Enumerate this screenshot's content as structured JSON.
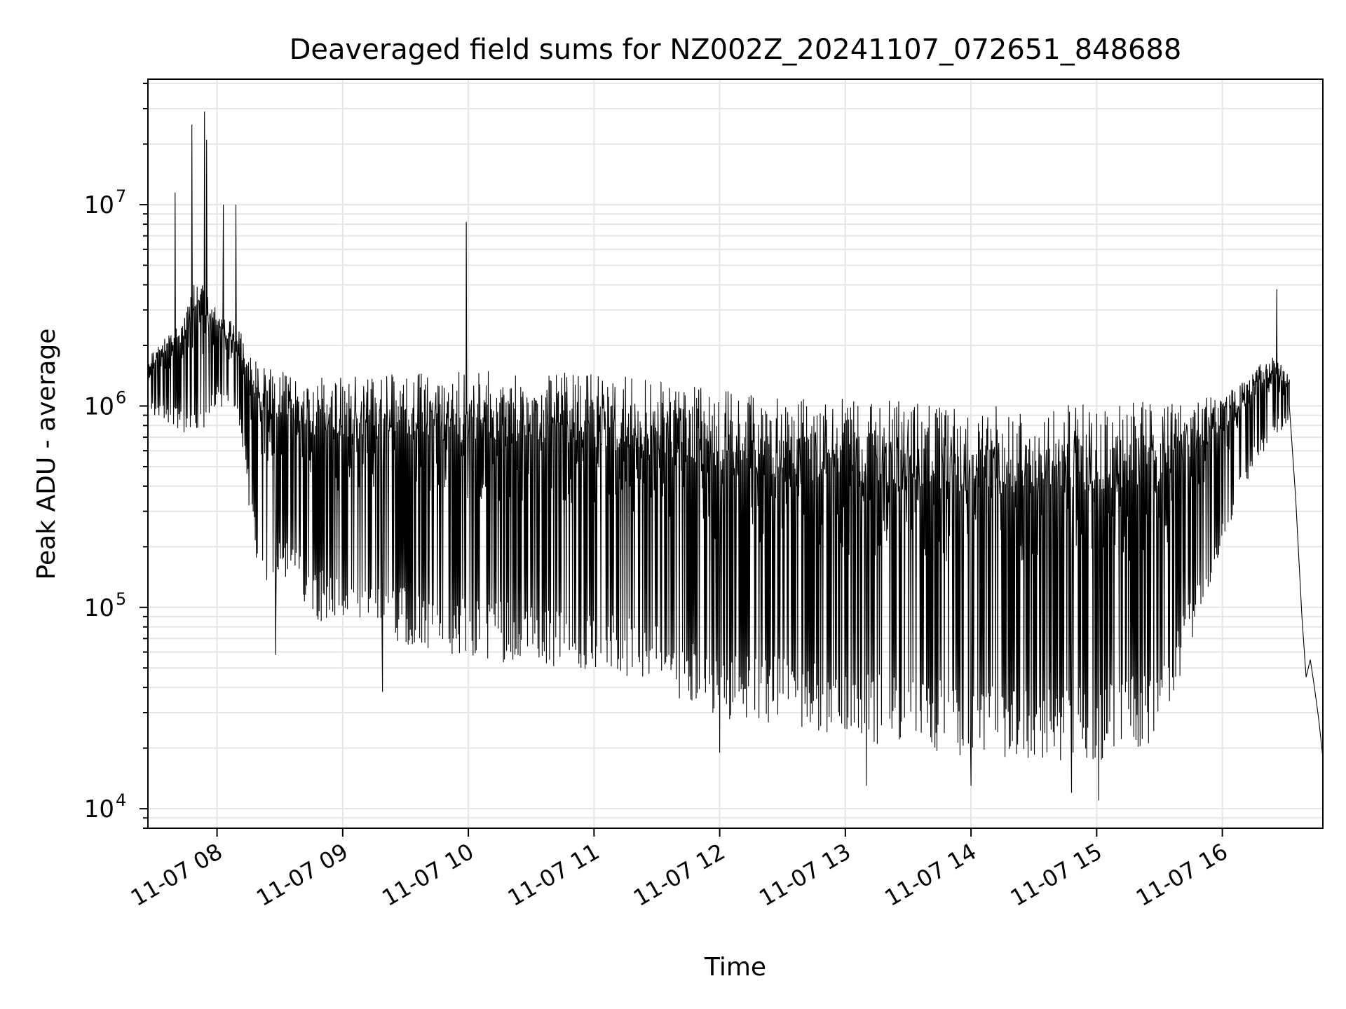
{
  "chart_data": {
    "type": "line",
    "title": "Deaveraged field sums for NZ002Z_20241107_072651_848688",
    "xlabel": "Time",
    "ylabel": "Peak ADU - average",
    "yscale": "log",
    "ylim": [
      8000,
      42000000
    ],
    "xlim": [
      "2024-11-07T07:27",
      "2024-11-07T16:48"
    ],
    "grid": true,
    "legend": "none",
    "x_ticks": [
      {
        "t": "2024-11-07T08:00",
        "label": "11-07 08"
      },
      {
        "t": "2024-11-07T09:00",
        "label": "11-07 09"
      },
      {
        "t": "2024-11-07T10:00",
        "label": "11-07 10"
      },
      {
        "t": "2024-11-07T11:00",
        "label": "11-07 11"
      },
      {
        "t": "2024-11-07T12:00",
        "label": "11-07 12"
      },
      {
        "t": "2024-11-07T13:00",
        "label": "11-07 13"
      },
      {
        "t": "2024-11-07T14:00",
        "label": "11-07 14"
      },
      {
        "t": "2024-11-07T15:00",
        "label": "11-07 15"
      },
      {
        "t": "2024-11-07T16:00",
        "label": "11-07 16"
      }
    ],
    "y_ticks": [
      {
        "value": 10000,
        "base": "10",
        "exp": "4"
      },
      {
        "value": 100000,
        "base": "10",
        "exp": "5"
      },
      {
        "value": 1000000,
        "base": "10",
        "exp": "6"
      },
      {
        "value": 10000000,
        "base": "10",
        "exp": "7"
      }
    ],
    "series": [
      {
        "color": "#000000",
        "envelope": [
          {
            "t": "2024-11-07T07:27",
            "high": 1800000,
            "low": 900000
          },
          {
            "t": "2024-11-07T07:40",
            "high": 2500000,
            "low": 800000
          },
          {
            "t": "2024-11-07T07:50",
            "high": 4500000,
            "low": 600000
          },
          {
            "t": "2024-11-07T08:00",
            "high": 3000000,
            "low": 1000000
          },
          {
            "t": "2024-11-07T08:10",
            "high": 2500000,
            "low": 900000
          },
          {
            "t": "2024-11-07T08:20",
            "high": 1600000,
            "low": 120000
          },
          {
            "t": "2024-11-07T08:30",
            "high": 1500000,
            "low": 150000
          },
          {
            "t": "2024-11-07T08:45",
            "high": 1400000,
            "low": 90000
          },
          {
            "t": "2024-11-07T09:00",
            "high": 1400000,
            "low": 75000
          },
          {
            "t": "2024-11-07T09:30",
            "high": 1450000,
            "low": 65000
          },
          {
            "t": "2024-11-07T10:00",
            "high": 1500000,
            "low": 55000
          },
          {
            "t": "2024-11-07T10:30",
            "high": 1500000,
            "low": 52000
          },
          {
            "t": "2024-11-07T11:00",
            "high": 1450000,
            "low": 48000
          },
          {
            "t": "2024-11-07T11:30",
            "high": 1350000,
            "low": 40000
          },
          {
            "t": "2024-11-07T12:00",
            "high": 1200000,
            "low": 28000
          },
          {
            "t": "2024-11-07T12:30",
            "high": 1100000,
            "low": 26000
          },
          {
            "t": "2024-11-07T13:00",
            "high": 1100000,
            "low": 22000
          },
          {
            "t": "2024-11-07T13:30",
            "high": 1050000,
            "low": 20000
          },
          {
            "t": "2024-11-07T14:00",
            "high": 1000000,
            "low": 18000
          },
          {
            "t": "2024-11-07T14:30",
            "high": 1000000,
            "low": 17000
          },
          {
            "t": "2024-11-07T15:00",
            "high": 1050000,
            "low": 17000
          },
          {
            "t": "2024-11-07T15:30",
            "high": 1050000,
            "low": 22000
          },
          {
            "t": "2024-11-07T16:00",
            "high": 1150000,
            "low": 200000
          },
          {
            "t": "2024-11-07T16:15",
            "high": 1500000,
            "low": 500000
          },
          {
            "t": "2024-11-07T16:25",
            "high": 1900000,
            "low": 700000
          },
          {
            "t": "2024-11-07T16:32",
            "high": 1400000,
            "low": 800000
          }
        ],
        "spikes": [
          {
            "t": "2024-11-07T07:40",
            "value": 11500000
          },
          {
            "t": "2024-11-07T07:48",
            "value": 25000000
          },
          {
            "t": "2024-11-07T07:54",
            "value": 29000000
          },
          {
            "t": "2024-11-07T07:55",
            "value": 21000000
          },
          {
            "t": "2024-11-07T08:03",
            "value": 10000000
          },
          {
            "t": "2024-11-07T08:09",
            "value": 10000000
          },
          {
            "t": "2024-11-07T09:59",
            "value": 8200000
          },
          {
            "t": "2024-11-07T16:26",
            "value": 3800000
          }
        ],
        "dips": [
          {
            "t": "2024-11-07T08:28",
            "value": 58000
          },
          {
            "t": "2024-11-07T09:19",
            "value": 38000
          },
          {
            "t": "2024-11-07T12:00",
            "value": 19000
          },
          {
            "t": "2024-11-07T13:10",
            "value": 13000
          },
          {
            "t": "2024-11-07T14:00",
            "value": 13000
          },
          {
            "t": "2024-11-07T14:48",
            "value": 12000
          },
          {
            "t": "2024-11-07T15:01",
            "value": 11000
          }
        ],
        "tail": [
          {
            "t": "2024-11-07T16:32",
            "value": 1000000
          },
          {
            "t": "2024-11-07T16:35",
            "value": 350000
          },
          {
            "t": "2024-11-07T16:38",
            "value": 90000
          },
          {
            "t": "2024-11-07T16:40",
            "value": 45000
          },
          {
            "t": "2024-11-07T16:42",
            "value": 55000
          },
          {
            "t": "2024-11-07T16:44",
            "value": 40000
          },
          {
            "t": "2024-11-07T16:46",
            "value": 28000
          },
          {
            "t": "2024-11-07T16:48",
            "value": 18000
          }
        ]
      }
    ]
  }
}
